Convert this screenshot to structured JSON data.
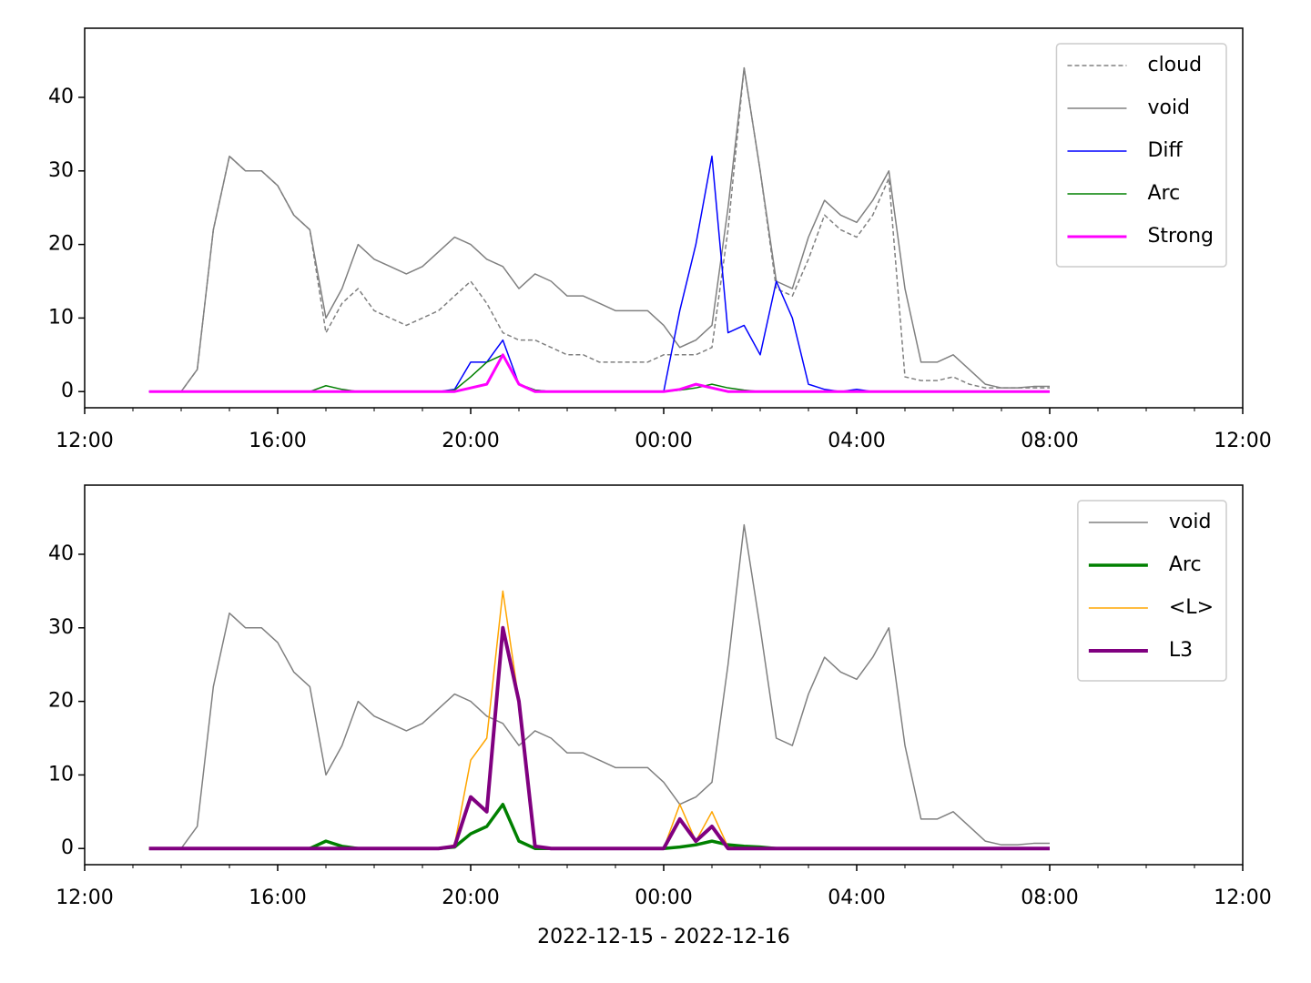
{
  "chart_data": [
    {
      "type": "line",
      "x": [
        "2022-12-15T13:20",
        "2022-12-15T13:40",
        "2022-12-15T14:00",
        "2022-12-15T14:20",
        "2022-12-15T14:40",
        "2022-12-15T15:00",
        "2022-12-15T15:20",
        "2022-12-15T15:40",
        "2022-12-15T16:00",
        "2022-12-15T16:20",
        "2022-12-15T16:40",
        "2022-12-15T17:00",
        "2022-12-15T17:20",
        "2022-12-15T17:40",
        "2022-12-15T18:00",
        "2022-12-15T18:20",
        "2022-12-15T18:40",
        "2022-12-15T19:00",
        "2022-12-15T19:20",
        "2022-12-15T19:40",
        "2022-12-15T20:00",
        "2022-12-15T20:20",
        "2022-12-15T20:40",
        "2022-12-15T21:00",
        "2022-12-15T21:20",
        "2022-12-15T21:40",
        "2022-12-15T22:00",
        "2022-12-15T22:20",
        "2022-12-15T22:40",
        "2022-12-15T23:00",
        "2022-12-15T23:20",
        "2022-12-15T23:40",
        "2022-12-16T00:00",
        "2022-12-16T00:20",
        "2022-12-16T00:40",
        "2022-12-16T01:00",
        "2022-12-16T01:20",
        "2022-12-16T01:40",
        "2022-12-16T02:00",
        "2022-12-16T02:20",
        "2022-12-16T02:40",
        "2022-12-16T03:00",
        "2022-12-16T03:20",
        "2022-12-16T03:40",
        "2022-12-16T04:00",
        "2022-12-16T04:20",
        "2022-12-16T04:40",
        "2022-12-16T05:00",
        "2022-12-16T05:20",
        "2022-12-16T05:40",
        "2022-12-16T06:00",
        "2022-12-16T06:20",
        "2022-12-16T06:40",
        "2022-12-16T07:00",
        "2022-12-16T07:20",
        "2022-12-16T07:40",
        "2022-12-16T08:00"
      ],
      "series": [
        {
          "name": "cloud",
          "color": "#808080",
          "dashed": true,
          "width": 1.5,
          "values": [
            0,
            0,
            0,
            3,
            22,
            32,
            30,
            30,
            28,
            24,
            22,
            8,
            12,
            14,
            11,
            10,
            9,
            10,
            11,
            13,
            15,
            12,
            8,
            7,
            7,
            6,
            5,
            5,
            4,
            4,
            4,
            4,
            5,
            5,
            5,
            6,
            22,
            44,
            30,
            14,
            13,
            18,
            24,
            22,
            21,
            24,
            29,
            2,
            1.5,
            1.5,
            2,
            1,
            0.5,
            0.5,
            0.5,
            0.5,
            0.5
          ]
        },
        {
          "name": "void",
          "color": "#808080",
          "width": 1.5,
          "values": [
            0,
            0,
            0,
            3,
            22,
            32,
            30,
            30,
            28,
            24,
            22,
            10,
            14,
            20,
            18,
            17,
            16,
            17,
            19,
            21,
            20,
            18,
            17,
            14,
            16,
            15,
            13,
            13,
            12,
            11,
            11,
            11,
            9,
            6,
            7,
            9,
            25,
            44,
            30,
            15,
            14,
            21,
            26,
            24,
            23,
            26,
            30,
            14,
            4,
            4,
            5,
            3,
            1,
            0.5,
            0.5,
            0.7,
            0.7
          ]
        },
        {
          "name": "Diff",
          "color": "#0000ff",
          "width": 1.5,
          "values": [
            0,
            0,
            0,
            0,
            0,
            0,
            0,
            0,
            0,
            0,
            0,
            0,
            0,
            0,
            0,
            0,
            0,
            0,
            0,
            0.3,
            4,
            4,
            7,
            1,
            0.2,
            0,
            0,
            0,
            0,
            0,
            0,
            0,
            0,
            11,
            20,
            32,
            8,
            9,
            5,
            15,
            10,
            1,
            0.3,
            0,
            0.3,
            0,
            0,
            0,
            0,
            0,
            0,
            0,
            0,
            0,
            0,
            0,
            0
          ]
        },
        {
          "name": "Arc",
          "color": "#008000",
          "width": 1.5,
          "values": [
            0,
            0,
            0,
            0,
            0,
            0,
            0,
            0,
            0,
            0,
            0,
            0.8,
            0.3,
            0,
            0,
            0,
            0,
            0,
            0,
            0.2,
            2,
            4,
            5,
            1,
            0.2,
            0,
            0,
            0,
            0,
            0,
            0,
            0,
            0,
            0.2,
            0.5,
            1,
            0.5,
            0.2,
            0,
            0,
            0,
            0,
            0,
            0,
            0,
            0,
            0,
            0,
            0,
            0,
            0,
            0,
            0,
            0,
            0,
            0,
            0
          ]
        },
        {
          "name": "Strong",
          "color": "#ff00ff",
          "width": 3,
          "values": [
            0,
            0,
            0,
            0,
            0,
            0,
            0,
            0,
            0,
            0,
            0,
            0,
            0,
            0,
            0,
            0,
            0,
            0,
            0,
            0,
            0.5,
            1,
            5,
            1,
            0,
            0,
            0,
            0,
            0,
            0,
            0,
            0,
            0,
            0.3,
            1,
            0.5,
            0,
            0,
            0,
            0,
            0,
            0,
            0,
            0,
            0,
            0,
            0,
            0,
            0,
            0,
            0,
            0,
            0,
            0,
            0,
            0,
            0
          ]
        }
      ],
      "xlim": [
        "2022-12-15T12:00",
        "2022-12-16T12:00"
      ],
      "xticks": [
        {
          "value": "2022-12-15T12:00",
          "label": "12:00"
        },
        {
          "value": "2022-12-15T16:00",
          "label": "16:00"
        },
        {
          "value": "2022-12-15T20:00",
          "label": "20:00"
        },
        {
          "value": "2022-12-16T00:00",
          "label": "00:00"
        },
        {
          "value": "2022-12-16T04:00",
          "label": "04:00"
        },
        {
          "value": "2022-12-16T08:00",
          "label": "08:00"
        },
        {
          "value": "2022-12-16T12:00",
          "label": "12:00"
        }
      ],
      "ylim": [
        -2.2,
        49.4
      ],
      "yticks": [
        0,
        10,
        20,
        30,
        40
      ],
      "legend": "upper right"
    },
    {
      "type": "line",
      "x": [
        "2022-12-15T13:20",
        "2022-12-15T13:40",
        "2022-12-15T14:00",
        "2022-12-15T14:20",
        "2022-12-15T14:40",
        "2022-12-15T15:00",
        "2022-12-15T15:20",
        "2022-12-15T15:40",
        "2022-12-15T16:00",
        "2022-12-15T16:20",
        "2022-12-15T16:40",
        "2022-12-15T17:00",
        "2022-12-15T17:20",
        "2022-12-15T17:40",
        "2022-12-15T18:00",
        "2022-12-15T18:20",
        "2022-12-15T18:40",
        "2022-12-15T19:00",
        "2022-12-15T19:20",
        "2022-12-15T19:40",
        "2022-12-15T20:00",
        "2022-12-15T20:20",
        "2022-12-15T20:40",
        "2022-12-15T21:00",
        "2022-12-15T21:20",
        "2022-12-15T21:40",
        "2022-12-15T22:00",
        "2022-12-15T22:20",
        "2022-12-15T22:40",
        "2022-12-15T23:00",
        "2022-12-15T23:20",
        "2022-12-15T23:40",
        "2022-12-16T00:00",
        "2022-12-16T00:20",
        "2022-12-16T00:40",
        "2022-12-16T01:00",
        "2022-12-16T01:20",
        "2022-12-16T01:40",
        "2022-12-16T02:00",
        "2022-12-16T02:20",
        "2022-12-16T02:40",
        "2022-12-16T03:00",
        "2022-12-16T03:20",
        "2022-12-16T03:40",
        "2022-12-16T04:00",
        "2022-12-16T04:20",
        "2022-12-16T04:40",
        "2022-12-16T05:00",
        "2022-12-16T05:20",
        "2022-12-16T05:40",
        "2022-12-16T06:00",
        "2022-12-16T06:20",
        "2022-12-16T06:40",
        "2022-12-16T07:00",
        "2022-12-16T07:20",
        "2022-12-16T07:40",
        "2022-12-16T08:00"
      ],
      "series": [
        {
          "name": "void",
          "color": "#808080",
          "width": 1.5,
          "values": [
            0,
            0,
            0,
            3,
            22,
            32,
            30,
            30,
            28,
            24,
            22,
            10,
            14,
            20,
            18,
            17,
            16,
            17,
            19,
            21,
            20,
            18,
            17,
            14,
            16,
            15,
            13,
            13,
            12,
            11,
            11,
            11,
            9,
            6,
            7,
            9,
            25,
            44,
            30,
            15,
            14,
            21,
            26,
            24,
            23,
            26,
            30,
            14,
            4,
            4,
            5,
            3,
            1,
            0.5,
            0.5,
            0.7,
            0.7
          ]
        },
        {
          "name": "Arc",
          "color": "#008000",
          "width": 3.5,
          "values": [
            0,
            0,
            0,
            0,
            0,
            0,
            0,
            0,
            0,
            0,
            0,
            1,
            0.3,
            0,
            0,
            0,
            0,
            0,
            0,
            0.2,
            2,
            3,
            6,
            1,
            0,
            0,
            0,
            0,
            0,
            0,
            0,
            0,
            0,
            0.2,
            0.5,
            1,
            0.5,
            0.3,
            0.2,
            0,
            0,
            0,
            0,
            0,
            0,
            0,
            0,
            0,
            0,
            0,
            0,
            0,
            0,
            0,
            0,
            0,
            0
          ]
        },
        {
          "name": "<L>",
          "color": "#ffa500",
          "width": 1.5,
          "values": [
            0,
            0,
            0,
            0,
            0,
            0,
            0,
            0,
            0,
            0,
            0,
            0,
            0,
            0,
            0,
            0,
            0,
            0,
            0,
            0.5,
            12,
            15,
            35,
            20,
            0.3,
            0,
            0,
            0,
            0,
            0,
            0,
            0,
            0,
            6,
            1,
            5,
            0.2,
            0,
            0,
            0,
            0,
            0,
            0,
            0,
            0,
            0,
            0,
            0,
            0,
            0,
            0,
            0,
            0,
            0,
            0,
            0,
            0
          ]
        },
        {
          "name": "L3",
          "color": "#800080",
          "width": 4,
          "values": [
            0,
            0,
            0,
            0,
            0,
            0,
            0,
            0,
            0,
            0,
            0,
            0,
            0,
            0,
            0,
            0,
            0,
            0,
            0,
            0.3,
            7,
            5,
            30,
            20,
            0.3,
            0,
            0,
            0,
            0,
            0,
            0,
            0,
            0,
            4,
            1,
            3,
            0,
            0,
            0,
            0,
            0,
            0,
            0,
            0,
            0,
            0,
            0,
            0,
            0,
            0,
            0,
            0,
            0,
            0,
            0,
            0,
            0
          ]
        }
      ],
      "xlim": [
        "2022-12-15T12:00",
        "2022-12-16T12:00"
      ],
      "xticks": [
        {
          "value": "2022-12-15T12:00",
          "label": "12:00"
        },
        {
          "value": "2022-12-15T16:00",
          "label": "16:00"
        },
        {
          "value": "2022-12-15T20:00",
          "label": "20:00"
        },
        {
          "value": "2022-12-16T00:00",
          "label": "00:00"
        },
        {
          "value": "2022-12-16T04:00",
          "label": "04:00"
        },
        {
          "value": "2022-12-16T08:00",
          "label": "08:00"
        },
        {
          "value": "2022-12-16T12:00",
          "label": "12:00"
        }
      ],
      "ylim": [
        -2.2,
        49.4
      ],
      "yticks": [
        0,
        10,
        20,
        30,
        40
      ],
      "xlabel": "2022-12-15 - 2022-12-16",
      "legend": "upper right"
    }
  ]
}
